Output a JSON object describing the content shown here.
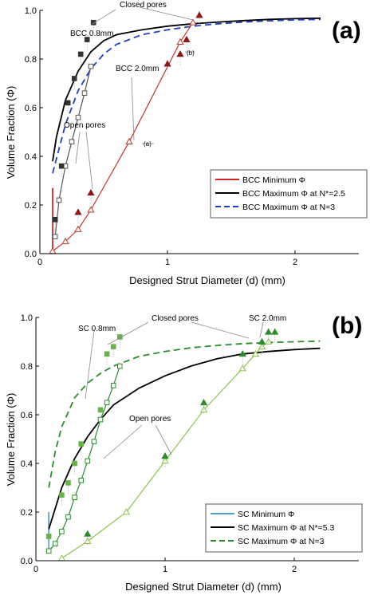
{
  "chart_data": [
    {
      "type": "line",
      "panel_label": "(a)",
      "xlabel": "Designed Strut Diameter (d) (mm)",
      "ylabel": "Volume Fraction (Φ)",
      "xlim": [
        0,
        2.5
      ],
      "ylim": [
        0,
        1.0
      ],
      "xticks": [
        0,
        1,
        2
      ],
      "yticks": [
        0.0,
        0.2,
        0.4,
        0.6,
        0.8,
        1.0
      ],
      "legend_position": "bottom-right",
      "series": [
        {
          "name": "BCC Minimum Φ",
          "style": "red-solid",
          "color": "#d62728",
          "x": [
            0.1,
            0.1,
            0.1,
            0.1
          ],
          "y": [
            0.02,
            0.05,
            0.1,
            0.27
          ]
        },
        {
          "name": "BCC Maximum Φ at N*=2.5",
          "style": "black-solid",
          "color": "#000000",
          "x": [
            0.1,
            0.13,
            0.2,
            0.3,
            0.4,
            0.5,
            0.6,
            0.8,
            1.0,
            1.2,
            1.4,
            1.6,
            1.8,
            2.0,
            2.2
          ],
          "y": [
            0.38,
            0.48,
            0.63,
            0.75,
            0.83,
            0.875,
            0.9,
            0.92,
            0.935,
            0.945,
            0.952,
            0.958,
            0.963,
            0.966,
            0.968
          ]
        },
        {
          "name": "BCC Maximum Φ at N=3",
          "style": "blue-dashed",
          "color": "#1f3fbf",
          "x": [
            0.1,
            0.15,
            0.2,
            0.3,
            0.4,
            0.5,
            0.6,
            0.8,
            1.0,
            1.2,
            1.4,
            1.6,
            1.8,
            2.0,
            2.2
          ],
          "y": [
            0.33,
            0.43,
            0.53,
            0.67,
            0.76,
            0.82,
            0.86,
            0.9,
            0.92,
            0.935,
            0.945,
            0.952,
            0.957,
            0.961,
            0.963
          ]
        },
        {
          "name": "",
          "style": "open-triangles",
          "color": "#c0392b",
          "x": [
            0.1,
            0.2,
            0.3,
            0.4,
            0.7,
            1.1,
            1.2
          ],
          "y": [
            0.01,
            0.05,
            0.1,
            0.18,
            0.46,
            0.87,
            0.95
          ]
        },
        {
          "name": "",
          "style": "filled-triangles",
          "color": "#8b1a1a",
          "x": [
            0.3,
            0.4,
            1.0,
            1.1,
            1.15,
            1.25
          ],
          "y": [
            0.17,
            0.25,
            0.78,
            0.82,
            0.88,
            0.98
          ]
        },
        {
          "name": "",
          "style": "open-squares",
          "color": "#555555",
          "x": [
            0.12,
            0.15,
            0.2,
            0.25,
            0.3,
            0.35,
            0.4
          ],
          "y": [
            0.07,
            0.22,
            0.36,
            0.46,
            0.56,
            0.66,
            0.77
          ]
        },
        {
          "name": "",
          "style": "filled-squares",
          "color": "#333333",
          "x": [
            0.12,
            0.17,
            0.22,
            0.27,
            0.32,
            0.37,
            0.42
          ],
          "y": [
            0.14,
            0.36,
            0.62,
            0.72,
            0.82,
            0.88,
            0.95
          ]
        }
      ],
      "annotations": [
        {
          "text": "Closed pores"
        },
        {
          "text": "BCC 0.8mm"
        },
        {
          "text": "BCC 2.0mm"
        },
        {
          "text": "Open pores"
        },
        {
          "text": "(a)"
        },
        {
          "text": "(b)"
        }
      ]
    },
    {
      "type": "line",
      "panel_label": "(b)",
      "xlabel": "Designed Strut Diameter (d) (mm)",
      "ylabel": "Volume Fraction (Φ)",
      "xlim": [
        0,
        2.5
      ],
      "ylim": [
        0,
        1.0
      ],
      "xticks": [
        0,
        1,
        2
      ],
      "yticks": [
        0.0,
        0.2,
        0.4,
        0.6,
        0.8,
        1.0
      ],
      "legend_position": "bottom-right",
      "series": [
        {
          "name": "SC Minimum Φ",
          "style": "lightblue-solid",
          "color": "#5b9bd5",
          "x": [
            0.1,
            0.1,
            0.1
          ],
          "y": [
            0.03,
            0.1,
            0.2
          ]
        },
        {
          "name": "SC Maximum Φ at N*=5.3",
          "style": "black-solid",
          "color": "#000000",
          "x": [
            0.1,
            0.2,
            0.3,
            0.4,
            0.5,
            0.6,
            0.8,
            1.0,
            1.2,
            1.4,
            1.6,
            1.8,
            2.0,
            2.2
          ],
          "y": [
            0.13,
            0.3,
            0.42,
            0.51,
            0.58,
            0.64,
            0.71,
            0.76,
            0.8,
            0.83,
            0.85,
            0.86,
            0.868,
            0.873
          ]
        },
        {
          "name": "SC Maximum Φ at N=3",
          "style": "green-dashed",
          "color": "#2e8b2e",
          "x": [
            0.1,
            0.15,
            0.2,
            0.3,
            0.4,
            0.5,
            0.6,
            0.8,
            1.0,
            1.2,
            1.4,
            1.6,
            1.8,
            2.0,
            2.2
          ],
          "y": [
            0.3,
            0.45,
            0.55,
            0.67,
            0.73,
            0.77,
            0.8,
            0.84,
            0.86,
            0.875,
            0.885,
            0.892,
            0.897,
            0.9,
            0.903
          ]
        },
        {
          "name": "",
          "style": "open-triangles-light",
          "color": "#8bc34a",
          "x": [
            0.2,
            0.4,
            0.7,
            1.0,
            1.3,
            1.6,
            1.7,
            1.75,
            1.8
          ],
          "y": [
            0.01,
            0.08,
            0.2,
            0.41,
            0.62,
            0.79,
            0.85,
            0.88,
            0.9
          ]
        },
        {
          "name": "",
          "style": "filled-triangles-light",
          "color": "#2e8b2e",
          "x": [
            0.4,
            1.0,
            1.3,
            1.6,
            1.75,
            1.8,
            1.85
          ],
          "y": [
            0.11,
            0.43,
            0.65,
            0.85,
            0.9,
            0.94,
            0.94
          ]
        },
        {
          "name": "",
          "style": "open-squares-light",
          "color": "#2e8b2e",
          "x": [
            0.1,
            0.15,
            0.2,
            0.25,
            0.3,
            0.35,
            0.4,
            0.45,
            0.5,
            0.55,
            0.6,
            0.65
          ],
          "y": [
            0.04,
            0.07,
            0.12,
            0.18,
            0.26,
            0.33,
            0.41,
            0.49,
            0.58,
            0.65,
            0.72,
            0.8
          ]
        },
        {
          "name": "",
          "style": "filled-squares-light",
          "color": "#6ab04c",
          "x": [
            0.1,
            0.2,
            0.25,
            0.3,
            0.35,
            0.5,
            0.55,
            0.6,
            0.65
          ],
          "y": [
            0.1,
            0.27,
            0.32,
            0.4,
            0.48,
            0.62,
            0.85,
            0.88,
            0.92
          ]
        }
      ],
      "annotations": [
        {
          "text": "SC 0.8mm"
        },
        {
          "text": "Closed pores"
        },
        {
          "text": "SC 2.0mm"
        },
        {
          "text": "Open pores"
        }
      ]
    }
  ]
}
